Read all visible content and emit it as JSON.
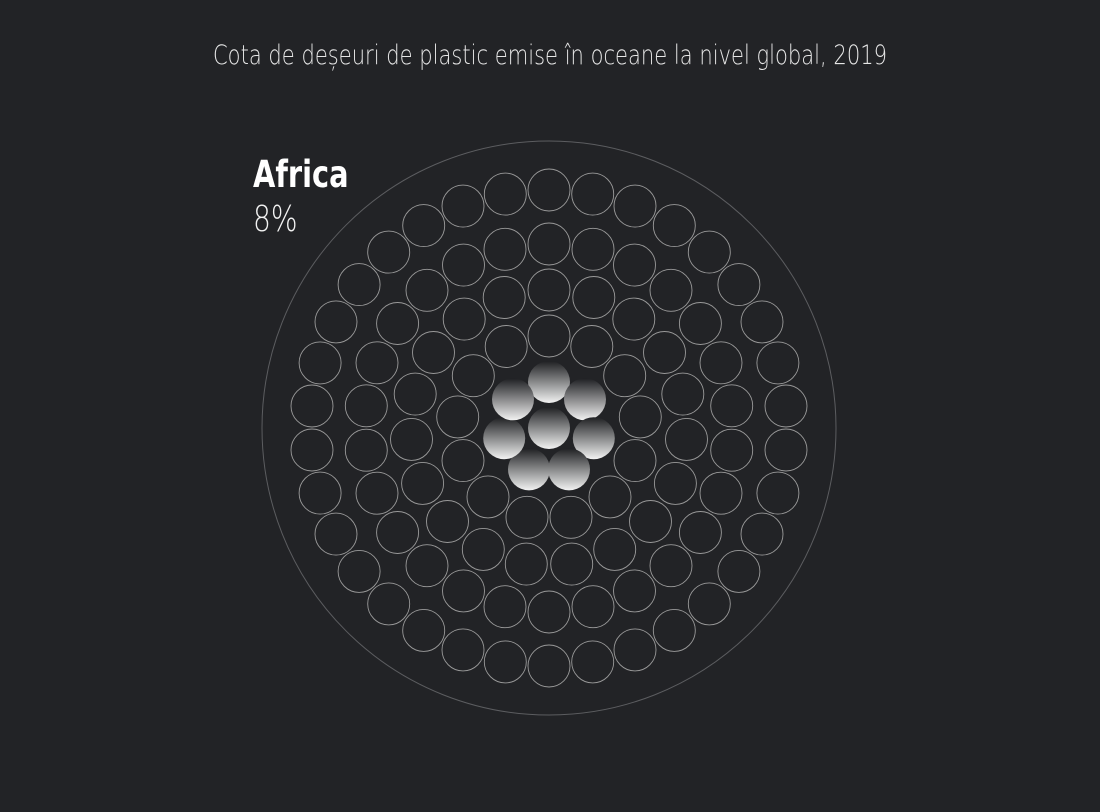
{
  "title": "Cota de deșeuri de plastic emise în oceane la nivel global, 2019",
  "chart_data": {
    "type": "unit-circle",
    "title": "Cota de deșeuri de plastic emise în oceane la nivel global, 2019",
    "total_units": 100,
    "highlighted_units": 8,
    "categories": [
      "Africa"
    ],
    "values": [
      8
    ],
    "unit": "%",
    "label": "Africa",
    "value_label": "8%",
    "colors": {
      "background": "#222326",
      "unit_outline": "#9a9a9a",
      "highlight_top": "#1f2023",
      "highlight_bottom": "#f2f2f2",
      "text": "#ffffff"
    }
  }
}
